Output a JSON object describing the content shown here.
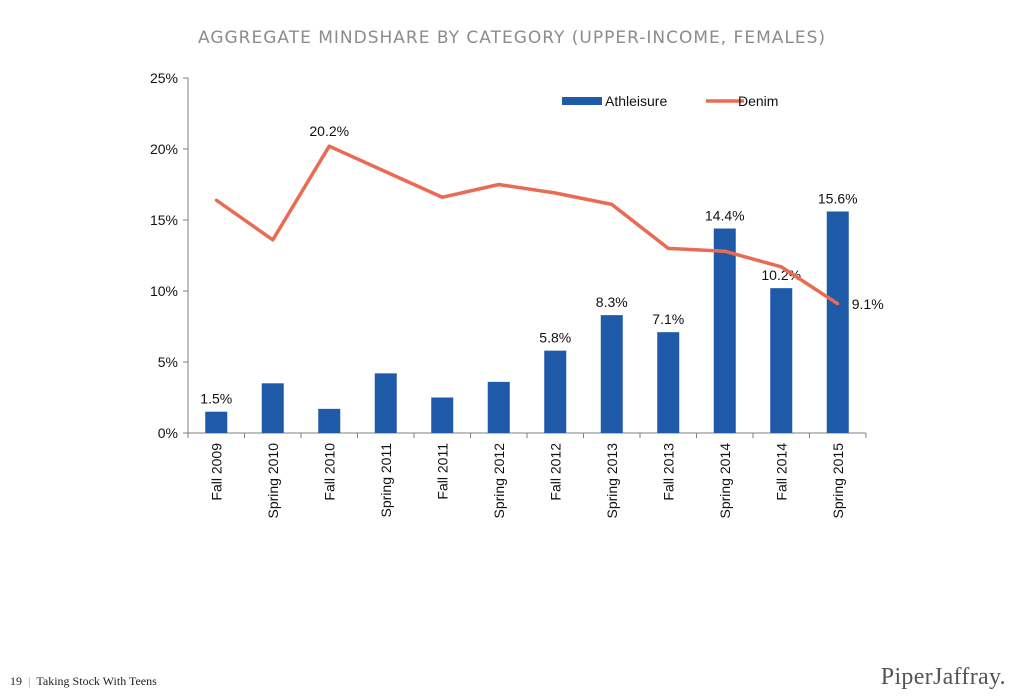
{
  "page": {
    "title": "AGGREGATE MINDSHARE BY CATEGORY (UPPER-INCOME, FEMALES)",
    "footer_page": "19",
    "footer_text": "Taking Stock With Teens",
    "brand": "PiperJaffray."
  },
  "colors": {
    "athleisure": "#1f5aa8",
    "denim": "#ea6b53",
    "axis": "#7f7f7f"
  },
  "chart_data": {
    "type": "bar",
    "title": "AGGREGATE MINDSHARE BY CATEGORY (UPPER-INCOME, FEMALES)",
    "categories": [
      "Fall 2009",
      "Spring 2010",
      "Fall 2010",
      "Spring 2011",
      "Fall 2011",
      "Spring 2012",
      "Fall 2012",
      "Spring 2013",
      "Fall 2013",
      "Spring 2014",
      "Fall 2014",
      "Spring 2015"
    ],
    "y_ticks": [
      "0%",
      "5%",
      "10%",
      "15%",
      "20%",
      "25%"
    ],
    "ylim": [
      0,
      25
    ],
    "y_unit": "%",
    "legend_position": "top-right",
    "series": [
      {
        "name": "Athleisure",
        "type": "bar",
        "values": [
          1.5,
          3.5,
          1.7,
          4.2,
          2.5,
          3.6,
          5.8,
          8.3,
          7.1,
          14.4,
          10.2,
          15.6
        ],
        "labels": [
          "1.5%",
          "",
          "",
          "",
          "",
          "",
          "5.8%",
          "8.3%",
          "7.1%",
          "14.4%",
          "10.2%",
          "15.6%"
        ]
      },
      {
        "name": "Denim",
        "type": "line",
        "values": [
          16.4,
          13.6,
          20.2,
          18.4,
          16.6,
          17.5,
          16.9,
          16.1,
          13.0,
          12.8,
          11.7,
          9.1
        ],
        "labels": [
          "",
          "",
          "20.2%",
          "",
          "",
          "",
          "",
          "",
          "",
          "",
          "",
          "9.1%"
        ]
      }
    ]
  }
}
